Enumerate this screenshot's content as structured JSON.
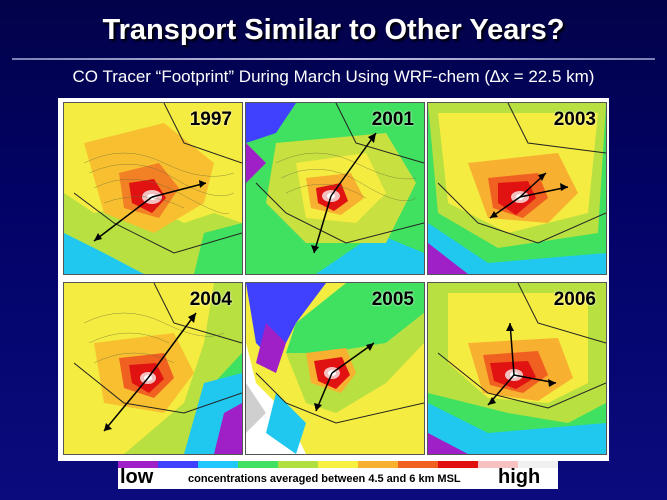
{
  "slide": {
    "title": "Transport Similar to Other Years?",
    "subtitle": "CO Tracer “Footprint” During March Using WRF-chem (∆x = 22.5 km)"
  },
  "panels": [
    {
      "year": "1997",
      "bg": "#f0ec3c"
    },
    {
      "year": "2001",
      "bg": "#c8ec3c"
    },
    {
      "year": "2003",
      "bg": "#f0e040"
    },
    {
      "year": "2004",
      "bg": "#f0ec3c"
    },
    {
      "year": "2005",
      "bg": "#f5f0b0"
    },
    {
      "year": "2006",
      "bg": "#f0e040"
    }
  ],
  "legend": {
    "low": "low",
    "caption": "concentrations averaged between 4.5 and 6 km MSL",
    "high": "high",
    "colors": [
      "#a020c8",
      "#4040ff",
      "#20c8ff",
      "#40e060",
      "#b0e040",
      "#f8f040",
      "#f8b030",
      "#f06020",
      "#e01010",
      "#f8c0c0",
      "#f0f0f0"
    ]
  }
}
